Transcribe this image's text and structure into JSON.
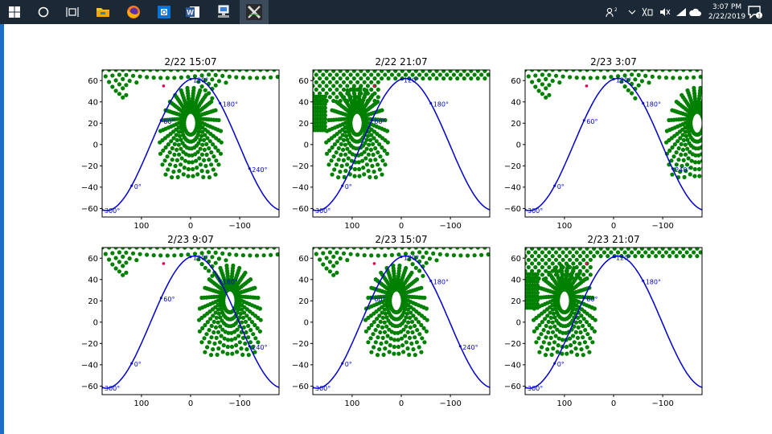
{
  "taskbar": {
    "icons": [
      {
        "name": "windows-start-icon",
        "interactable": true
      },
      {
        "name": "cortana-search-icon",
        "interactable": true
      },
      {
        "name": "task-view-icon",
        "interactable": true
      },
      {
        "name": "file-explorer-icon",
        "interactable": true
      },
      {
        "name": "firefox-icon",
        "interactable": true
      },
      {
        "name": "outlook-icon",
        "interactable": true
      },
      {
        "name": "word-icon",
        "interactable": true
      },
      {
        "name": "remote-desktop-icon",
        "interactable": true
      },
      {
        "name": "xming-icon",
        "interactable": true
      }
    ],
    "tray": {
      "icons": [
        "people-icon",
        "chevron-up-icon",
        "network-icon",
        "volume-icon",
        "wifi-icon",
        "weather-icon",
        "notification-icon"
      ],
      "time": "3:07 PM",
      "date": "2/22/2019",
      "notification_count": "1"
    }
  },
  "chart_data": [
    {
      "type": "scatter",
      "title": "2/22 15:07",
      "xlim": [
        180,
        -180
      ],
      "ylim": [
        -68,
        70
      ],
      "xticks": [
        "100",
        "0",
        "−100"
      ],
      "yticks": [
        "60",
        "40",
        "20",
        "0",
        "−20",
        "−40",
        "−60"
      ],
      "footprint_color": "#008000",
      "curve_color": "#0000cc",
      "curve_labels": [
        "240°",
        "180°",
        "120°",
        "60°",
        "0°",
        "300°"
      ],
      "footprint_center_lon": 0,
      "background_footprint": "topband"
    },
    {
      "type": "scatter",
      "title": "2/22 21:07",
      "xlim": [
        180,
        -180
      ],
      "ylim": [
        -68,
        70
      ],
      "xticks": [
        "100",
        "0",
        "−100"
      ],
      "yticks": [
        "60",
        "40",
        "20",
        "0",
        "−20",
        "−40",
        "−60"
      ],
      "footprint_color": "#008000",
      "curve_color": "#0000cc",
      "curve_labels": [
        "180°",
        "120°",
        "60°",
        "0°",
        "300°"
      ],
      "footprint_center_lon": 90,
      "background_footprint": "topleft"
    },
    {
      "type": "scatter",
      "title": "2/23 3:07",
      "xlim": [
        180,
        -180
      ],
      "ylim": [
        -68,
        70
      ],
      "xticks": [
        "100",
        "0",
        "−100"
      ],
      "yticks": [
        "60",
        "40",
        "20",
        "0",
        "−20",
        "−40",
        "−60"
      ],
      "footprint_color": "#008000",
      "curve_color": "#0000cc",
      "curve_labels": [
        "240°",
        "180°",
        "120°",
        "60°",
        "0°",
        "300°"
      ],
      "footprint_center_lon": -170,
      "background_footprint": "topband"
    },
    {
      "type": "scatter",
      "title": "2/23 9:07",
      "xlim": [
        180,
        -180
      ],
      "ylim": [
        -68,
        70
      ],
      "xticks": [
        "100",
        "0",
        "−100"
      ],
      "yticks": [
        "60",
        "40",
        "20",
        "0",
        "−20",
        "−40",
        "−60"
      ],
      "footprint_color": "#008000",
      "curve_color": "#0000cc",
      "curve_labels": [
        "240°",
        "180°",
        "120°",
        "60°",
        "0°",
        "300°"
      ],
      "footprint_center_lon": -80,
      "background_footprint": "topband"
    },
    {
      "type": "scatter",
      "title": "2/23 15:07",
      "xlim": [
        180,
        -180
      ],
      "ylim": [
        -68,
        70
      ],
      "xticks": [
        "100",
        "0",
        "−100"
      ],
      "yticks": [
        "60",
        "40",
        "20",
        "0",
        "−20",
        "−40",
        "−60"
      ],
      "footprint_color": "#008000",
      "curve_color": "#0000cc",
      "curve_labels": [
        "240°",
        "180°",
        "120°",
        "60°",
        "0°",
        "300°"
      ],
      "footprint_center_lon": 10,
      "background_footprint": "topband"
    },
    {
      "type": "scatter",
      "title": "2/23 21:07",
      "xlim": [
        180,
        -180
      ],
      "ylim": [
        -68,
        70
      ],
      "xticks": [
        "100",
        "0",
        "−100"
      ],
      "yticks": [
        "60",
        "40",
        "20",
        "0",
        "−20",
        "−40",
        "−60"
      ],
      "footprint_color": "#008000",
      "curve_color": "#0000cc",
      "curve_labels": [
        "180°",
        "120°",
        "60°",
        "0°",
        "300°"
      ],
      "footprint_center_lon": 100,
      "background_footprint": "topleft"
    }
  ]
}
